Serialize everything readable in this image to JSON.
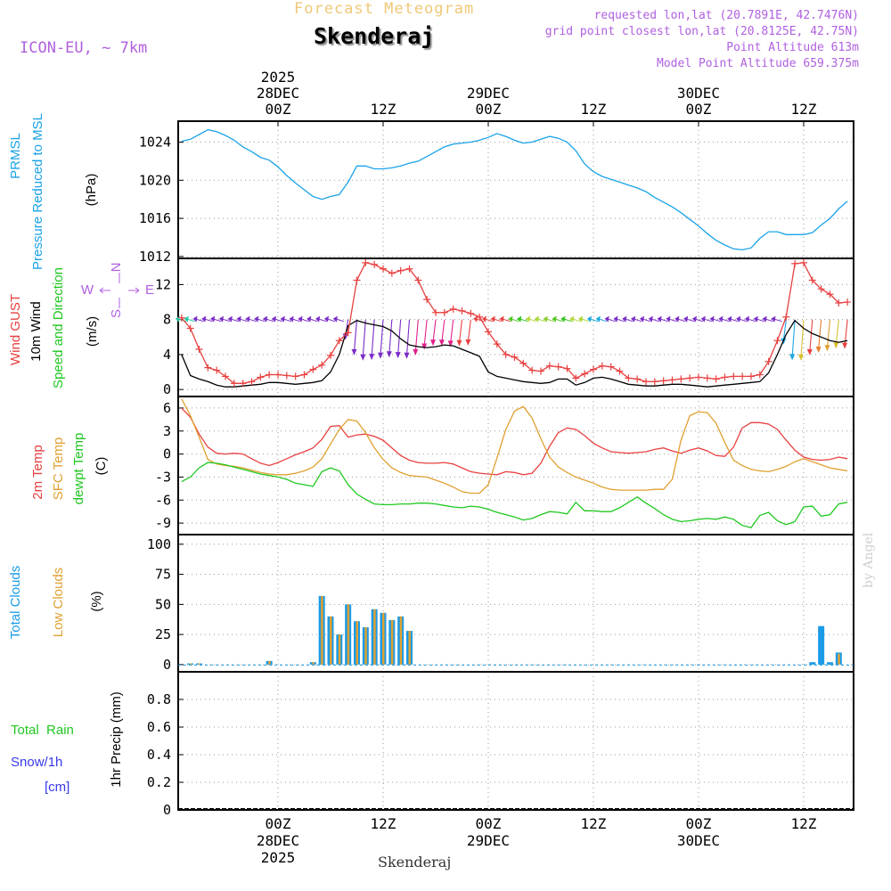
{
  "header": {
    "supertitle": "Forecast Meteogram",
    "station": "Skenderaj",
    "model": "ICON-EU, ~ 7km",
    "requested": "requested lon,lat (20.7891E, 42.7476N)",
    "gridpoint": "grid point closest lon,lat (20.8125E, 42.75N)",
    "point_altitude": "Point Altitude 613m",
    "model_altitude": "Model Point Altitude 659.375m",
    "byline": "by Angel",
    "footer": "Skenderaj"
  },
  "time_axis": {
    "top_labels": [
      {
        "hour": 0,
        "lines": [
          "2025",
          "28DEC",
          "00Z"
        ]
      },
      {
        "hour": 12,
        "lines": [
          "12Z"
        ]
      },
      {
        "hour": 24,
        "lines": [
          "29DEC",
          "00Z"
        ]
      },
      {
        "hour": 36,
        "lines": [
          "12Z"
        ]
      },
      {
        "hour": 48,
        "lines": [
          "30DEC",
          "00Z"
        ]
      },
      {
        "hour": 60,
        "lines": [
          "12Z"
        ]
      }
    ],
    "bottom_labels": [
      {
        "hour": 0,
        "lines": [
          "00Z",
          "28DEC",
          "2025"
        ]
      },
      {
        "hour": 12,
        "lines": [
          "12Z"
        ]
      },
      {
        "hour": 24,
        "lines": [
          "00Z",
          "29DEC"
        ]
      },
      {
        "hour": 36,
        "lines": [
          "12Z"
        ]
      },
      {
        "hour": 48,
        "lines": [
          "00Z",
          "30DEC"
        ]
      },
      {
        "hour": 60,
        "lines": [
          "12Z"
        ]
      }
    ]
  },
  "panel_labels": {
    "pressure": [
      "PRMSL",
      "Pressure Reduced to MSL",
      "(hPa)"
    ],
    "wind": [
      "Wind GUST",
      "10m Wind",
      "Speed and Direction",
      "(m/s)"
    ],
    "compass": [
      "N",
      "S",
      "E",
      "W"
    ],
    "temp": [
      "2m Temp",
      "SFC Temp",
      "dewpt Temp",
      "(C)"
    ],
    "clouds": [
      "Total Clouds",
      "Low Clouds",
      "(%)"
    ],
    "precip": [
      "Total  Rain",
      "Snow/1h",
      "[cm]",
      "1hr Precip (mm)"
    ]
  },
  "colors": {
    "pressure": "#1aa3e8",
    "gust": "#e84040",
    "wind": "#000000",
    "temp2m": "#e84040",
    "sfc": "#e0a030",
    "dewpt": "#20c820",
    "total_clouds": "#1a9be8",
    "low_clouds": "#e0a030",
    "rain": "#20c820",
    "snow": "#3838e8",
    "compass": "#b060e0"
  },
  "chart_data": [
    {
      "type": "line",
      "title": "PRMSL Pressure Reduced to MSL",
      "ylabel": "(hPa)",
      "ylim": [
        1011.8,
        1026.2
      ],
      "yticks": [
        1012,
        1016,
        1020,
        1024
      ],
      "x_hours": [
        -11,
        -10,
        -9,
        -8,
        -7,
        -6,
        -5,
        -4,
        -3,
        -2,
        -1,
        0,
        1,
        2,
        3,
        4,
        5,
        6,
        7,
        8,
        9,
        10,
        11,
        12,
        13,
        14,
        15,
        16,
        17,
        18,
        19,
        20,
        21,
        22,
        23,
        24,
        25,
        26,
        27,
        28,
        29,
        30,
        31,
        32,
        33,
        34,
        35,
        36,
        37,
        38,
        39,
        40,
        41,
        42,
        43,
        44,
        45,
        46,
        47,
        48,
        49,
        50,
        51,
        52,
        53,
        54,
        55,
        56,
        57,
        58,
        59,
        60,
        61,
        62,
        63,
        64,
        65
      ],
      "series": [
        {
          "name": "PRMSL",
          "values": [
            1024.1,
            1024.3,
            1024.8,
            1025.3,
            1025.1,
            1024.7,
            1024.2,
            1023.5,
            1023.0,
            1022.4,
            1022.1,
            1021.4,
            1020.5,
            1019.7,
            1019.0,
            1018.3,
            1018.0,
            1018.3,
            1018.5,
            1019.8,
            1021.5,
            1021.5,
            1021.2,
            1021.2,
            1021.3,
            1021.5,
            1021.8,
            1022.0,
            1022.5,
            1023.0,
            1023.5,
            1023.8,
            1023.9,
            1024.0,
            1024.2,
            1024.5,
            1024.9,
            1024.6,
            1024.2,
            1023.9,
            1024.0,
            1024.3,
            1024.6,
            1024.4,
            1024.0,
            1023.1,
            1021.7,
            1020.9,
            1020.4,
            1020.1,
            1019.8,
            1019.5,
            1019.2,
            1018.8,
            1018.2,
            1017.7,
            1017.2,
            1016.6,
            1015.9,
            1015.2,
            1014.4,
            1013.7,
            1013.2,
            1012.8,
            1012.7,
            1012.9,
            1013.9,
            1014.6,
            1014.6,
            1014.3,
            1014.3,
            1014.3,
            1014.5,
            1015.3,
            1016.0,
            1017.0,
            1017.8
          ]
        }
      ]
    },
    {
      "type": "line",
      "title": "Wind GUST / 10m Wind Speed and Direction",
      "ylabel": "(m/s)",
      "ylim": [
        -0.8,
        15
      ],
      "yticks": [
        0,
        4,
        8,
        12
      ],
      "x_hours": [
        -11,
        -10,
        -9,
        -8,
        -7,
        -6,
        -5,
        -4,
        -3,
        -2,
        -1,
        0,
        1,
        2,
        3,
        4,
        5,
        6,
        7,
        8,
        9,
        10,
        11,
        12,
        13,
        14,
        15,
        16,
        17,
        18,
        19,
        20,
        21,
        22,
        23,
        24,
        25,
        26,
        27,
        28,
        29,
        30,
        31,
        32,
        33,
        34,
        35,
        36,
        37,
        38,
        39,
        40,
        41,
        42,
        43,
        44,
        45,
        46,
        47,
        48,
        49,
        50,
        51,
        52,
        53,
        54,
        55,
        56,
        57,
        58,
        59,
        60,
        61,
        62,
        63,
        64,
        65
      ],
      "series": [
        {
          "name": "Wind GUST",
          "values": [
            8.2,
            7.0,
            4.6,
            2.5,
            2.2,
            1.5,
            0.7,
            0.7,
            0.9,
            1.4,
            1.7,
            1.7,
            1.6,
            1.5,
            1.7,
            2.3,
            2.8,
            3.9,
            5.6,
            6.5,
            12.5,
            14.5,
            14.3,
            13.8,
            13.3,
            13.6,
            13.8,
            12.5,
            10.3,
            8.8,
            8.8,
            9.2,
            9.0,
            8.7,
            8.3,
            6.6,
            5.2,
            4.0,
            3.7,
            3.0,
            2.2,
            2.1,
            2.7,
            2.6,
            2.4,
            1.3,
            1.8,
            2.3,
            2.7,
            2.6,
            2.1,
            1.3,
            1.2,
            0.9,
            0.9,
            1.0,
            1.1,
            1.2,
            1.3,
            1.4,
            1.3,
            1.2,
            1.4,
            1.5,
            1.5,
            1.5,
            1.7,
            3.2,
            5.6,
            8.3,
            14.4,
            14.5,
            12.5,
            11.5,
            10.9,
            9.9,
            10.0
          ]
        },
        {
          "name": "10m Wind",
          "values": [
            4.0,
            1.6,
            1.2,
            0.9,
            0.5,
            0.3,
            0.3,
            0.4,
            0.5,
            0.6,
            0.8,
            0.8,
            0.7,
            0.6,
            0.7,
            0.8,
            1.0,
            2.0,
            4.0,
            7.3,
            7.9,
            7.6,
            7.4,
            7.2,
            6.7,
            5.8,
            5.1,
            4.9,
            4.8,
            4.9,
            5.1,
            5.0,
            4.6,
            4.2,
            3.8,
            2.0,
            1.5,
            1.3,
            1.1,
            0.9,
            0.8,
            0.7,
            0.8,
            1.2,
            1.2,
            0.5,
            0.8,
            1.3,
            1.4,
            1.2,
            0.9,
            0.6,
            0.5,
            0.4,
            0.4,
            0.5,
            0.6,
            0.6,
            0.5,
            0.4,
            0.3,
            0.4,
            0.5,
            0.6,
            0.7,
            0.8,
            0.9,
            1.9,
            4.0,
            6.3,
            7.9,
            7.0,
            6.4,
            6.0,
            5.6,
            5.4,
            5.6
          ]
        }
      ]
    },
    {
      "type": "line",
      "title": "2m Temp / SFC Temp / dewpt Temp",
      "ylabel": "(C)",
      "ylim": [
        -10.5,
        7.5
      ],
      "yticks": [
        -9,
        -6,
        -3,
        0,
        3,
        6
      ],
      "x_hours": [
        -11,
        -10,
        -9,
        -8,
        -7,
        -6,
        -5,
        -4,
        -3,
        -2,
        -1,
        0,
        1,
        2,
        3,
        4,
        5,
        6,
        7,
        8,
        9,
        10,
        11,
        12,
        13,
        14,
        15,
        16,
        17,
        18,
        19,
        20,
        21,
        22,
        23,
        24,
        25,
        26,
        27,
        28,
        29,
        30,
        31,
        32,
        33,
        34,
        35,
        36,
        37,
        38,
        39,
        40,
        41,
        42,
        43,
        44,
        45,
        46,
        47,
        48,
        49,
        50,
        51,
        52,
        53,
        54,
        55,
        56,
        57,
        58,
        59,
        60,
        61,
        62,
        63,
        64,
        65
      ],
      "series": [
        {
          "name": "2m Temp",
          "values": [
            6.0,
            4.8,
            2.6,
            0.9,
            0.1,
            0.0,
            0.1,
            0.0,
            -0.6,
            -1.2,
            -1.5,
            -1.1,
            -0.6,
            -0.1,
            0.3,
            0.8,
            1.9,
            3.6,
            3.7,
            2.2,
            2.5,
            2.6,
            2.3,
            1.8,
            0.8,
            -0.2,
            -0.8,
            -1.1,
            -1.2,
            -1.2,
            -1.1,
            -1.3,
            -1.8,
            -2.3,
            -2.5,
            -2.6,
            -2.7,
            -2.3,
            -2.4,
            -2.7,
            -2.5,
            -1.2,
            1.0,
            2.8,
            3.4,
            3.2,
            2.4,
            1.4,
            0.8,
            0.3,
            0.2,
            0.1,
            0.2,
            0.3,
            0.6,
            0.8,
            0.4,
            0.1,
            0.5,
            0.8,
            0.4,
            -0.2,
            -0.3,
            0.9,
            3.4,
            4.1,
            4.1,
            3.9,
            3.2,
            1.8,
            0.5,
            -0.4,
            -0.7,
            -0.8,
            -0.7,
            -0.4,
            -0.6
          ]
        },
        {
          "name": "SFC Temp",
          "values": [
            7.2,
            5.0,
            2.2,
            -0.7,
            -1.3,
            -1.5,
            -1.6,
            -1.8,
            -2.1,
            -2.4,
            -2.6,
            -2.7,
            -2.7,
            -2.5,
            -2.2,
            -1.7,
            -0.6,
            1.3,
            3.2,
            4.5,
            4.3,
            2.8,
            0.8,
            -0.7,
            -1.8,
            -2.4,
            -2.8,
            -2.9,
            -3.0,
            -3.4,
            -3.8,
            -4.3,
            -4.9,
            -5.1,
            -5.1,
            -4.0,
            -0.5,
            3.2,
            5.6,
            6.2,
            4.7,
            2.0,
            -0.4,
            -1.7,
            -2.4,
            -3.0,
            -3.4,
            -3.8,
            -4.3,
            -4.6,
            -4.7,
            -4.7,
            -4.7,
            -4.7,
            -4.6,
            -4.6,
            -3.3,
            1.8,
            5.0,
            5.5,
            5.4,
            4.0,
            1.5,
            -0.8,
            -1.5,
            -2.0,
            -2.2,
            -2.3,
            -2.0,
            -1.6,
            -1.0,
            -0.6,
            -1.0,
            -1.4,
            -1.8,
            -2.0,
            -2.2
          ]
        },
        {
          "name": "dewpt Temp",
          "values": [
            -3.6,
            -3.0,
            -1.8,
            -1.1,
            -1.2,
            -1.4,
            -1.7,
            -2.0,
            -2.3,
            -2.6,
            -2.8,
            -3.0,
            -3.3,
            -3.8,
            -4.0,
            -4.2,
            -2.3,
            -1.8,
            -2.2,
            -4.0,
            -5.2,
            -5.9,
            -6.5,
            -6.6,
            -6.6,
            -6.5,
            -6.5,
            -6.4,
            -6.4,
            -6.5,
            -6.7,
            -6.9,
            -7.0,
            -6.8,
            -6.9,
            -7.2,
            -7.6,
            -7.9,
            -8.2,
            -8.6,
            -8.4,
            -7.9,
            -7.5,
            -7.6,
            -7.8,
            -6.3,
            -7.4,
            -7.4,
            -7.5,
            -7.5,
            -7.0,
            -6.3,
            -5.6,
            -6.4,
            -7.1,
            -7.9,
            -8.5,
            -8.8,
            -8.7,
            -8.5,
            -8.4,
            -8.5,
            -8.2,
            -8.5,
            -9.3,
            -9.6,
            -8.0,
            -7.6,
            -8.7,
            -9.2,
            -8.8,
            -6.9,
            -6.8,
            -8.1,
            -7.9,
            -6.5,
            -6.3
          ]
        }
      ]
    },
    {
      "type": "bar",
      "title": "Total Clouds / Low Clouds",
      "ylabel": "(%)",
      "ylim": [
        -6,
        108
      ],
      "yticks": [
        0,
        25,
        50,
        75,
        100
      ],
      "x_hours": [
        -11,
        -10,
        -9,
        -8,
        -7,
        -6,
        -5,
        -4,
        -3,
        -2,
        -1,
        0,
        1,
        2,
        3,
        4,
        5,
        6,
        7,
        8,
        9,
        10,
        11,
        12,
        13,
        14,
        15,
        16,
        17,
        18,
        19,
        20,
        21,
        22,
        23,
        24,
        25,
        26,
        27,
        28,
        29,
        30,
        31,
        32,
        33,
        34,
        35,
        36,
        37,
        38,
        39,
        40,
        41,
        42,
        43,
        44,
        45,
        46,
        47,
        48,
        49,
        50,
        51,
        52,
        53,
        54,
        55,
        56,
        57,
        58,
        59,
        60,
        61,
        62,
        63,
        64,
        65
      ],
      "series": [
        {
          "name": "Total Clouds",
          "values": [
            0,
            1,
            1,
            0,
            0,
            0,
            0,
            0,
            0,
            0,
            3,
            0,
            0,
            0,
            0,
            2,
            57,
            40,
            25,
            50,
            36,
            31,
            46,
            43,
            37,
            40,
            28,
            0,
            0,
            0,
            0,
            0,
            0,
            0,
            0,
            0,
            0,
            0,
            0,
            0,
            0,
            0,
            0,
            0,
            0,
            0,
            0,
            0,
            0,
            0,
            0,
            0,
            0,
            0,
            0,
            0,
            0,
            0,
            0,
            0,
            0,
            0,
            0,
            0,
            0,
            0,
            0,
            0,
            0,
            0,
            0,
            0,
            2,
            32,
            2,
            10,
            0
          ]
        },
        {
          "name": "Low Clouds",
          "values": [
            0,
            1,
            1,
            0,
            0,
            0,
            0,
            0,
            0,
            0,
            3,
            0,
            0,
            0,
            0,
            2,
            57,
            40,
            25,
            50,
            36,
            31,
            46,
            43,
            37,
            40,
            28,
            0,
            0,
            0,
            0,
            0,
            0,
            0,
            0,
            0,
            0,
            0,
            0,
            0,
            0,
            0,
            0,
            0,
            0,
            0,
            0,
            0,
            0,
            0,
            0,
            0,
            0,
            0,
            0,
            0,
            0,
            0,
            0,
            0,
            0,
            0,
            0,
            0,
            0,
            0,
            0,
            0,
            0,
            0,
            0,
            0,
            0,
            0,
            0,
            9,
            0
          ]
        }
      ]
    },
    {
      "type": "bar",
      "title": "1hr Precip",
      "ylabel": "1hr Precip (mm)",
      "ylim": [
        0,
        1.0
      ],
      "yticks": [
        0,
        0.2,
        0.4,
        0.6,
        0.8
      ],
      "series": [
        {
          "name": "Total Rain",
          "values": []
        },
        {
          "name": "Snow/1h",
          "values": []
        }
      ]
    }
  ]
}
